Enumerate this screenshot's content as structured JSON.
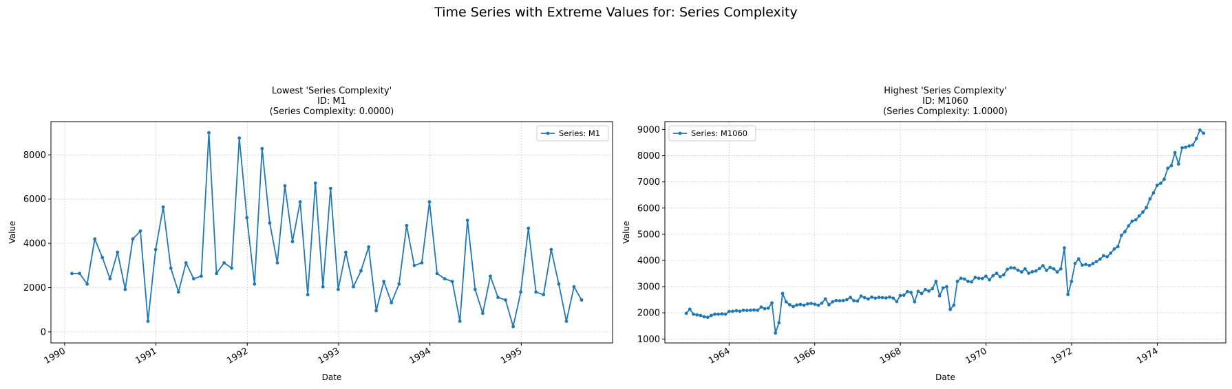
{
  "figure": {
    "suptitle": "Time Series with Extreme Values for: Series Complexity"
  },
  "style": {
    "line_color": "#1f77b4",
    "grid_color": "#cccccc",
    "axes_color": "#000000"
  },
  "chart_data": [
    {
      "type": "line",
      "title_lines": [
        "Lowest 'Series Complexity'",
        "ID: M1",
        "(Series Complexity: 0.0000)"
      ],
      "xlabel": "Date",
      "ylabel": "Value",
      "xlim": [
        1989.85,
        1996.0
      ],
      "ylim": [
        -500,
        9500
      ],
      "xticks": [
        1990,
        1991,
        1992,
        1993,
        1994,
        1995
      ],
      "xtick_labels": [
        "1990",
        "1991",
        "1992",
        "1993",
        "1994",
        "1995"
      ],
      "yticks": [
        0,
        2000,
        4000,
        6000,
        8000
      ],
      "ytick_labels": [
        "0",
        "2000",
        "4000",
        "6000",
        "8000"
      ],
      "grid": true,
      "legend_position": "upper right",
      "series": [
        {
          "name": "Series: M1",
          "start_year": 1990.08,
          "step_years": 0.0833,
          "values": [
            2640,
            2640,
            2160,
            4200,
            3360,
            2400,
            3600,
            1920,
            4200,
            4560,
            480,
            3720,
            5640,
            2880,
            1800,
            3120,
            2400,
            2520,
            9000,
            2640,
            3120,
            2880,
            8760,
            5160,
            2160,
            8280,
            4920,
            3120,
            6600,
            4080,
            5880,
            1680,
            6720,
            2040,
            6480,
            1920,
            3600,
            2040,
            2760,
            3840,
            960,
            2280,
            1320,
            2160,
            4800,
            3000,
            3120,
            5880,
            2640,
            2400,
            2280,
            480,
            5040,
            1920,
            840,
            2520,
            1560,
            1440,
            240,
            1800,
            4680,
            1800,
            1680,
            3720,
            2160,
            480,
            2040,
            1440
          ]
        }
      ]
    },
    {
      "type": "line",
      "title_lines": [
        "Highest 'Series Complexity'",
        "ID: M1060",
        "(Series Complexity: 1.0000)"
      ],
      "xlabel": "Date",
      "ylabel": "Value",
      "xlim": [
        1962.5,
        1975.6
      ],
      "ylim": [
        850,
        9300
      ],
      "xticks": [
        1964,
        1966,
        1968,
        1970,
        1972,
        1974
      ],
      "xtick_labels": [
        "1964",
        "1966",
        "1968",
        "1970",
        "1972",
        "1974"
      ],
      "yticks": [
        1000,
        2000,
        3000,
        4000,
        5000,
        6000,
        7000,
        8000,
        9000
      ],
      "ytick_labels": [
        "1000",
        "2000",
        "3000",
        "4000",
        "5000",
        "6000",
        "7000",
        "8000",
        "9000"
      ],
      "grid": true,
      "legend_position": "upper left",
      "series": [
        {
          "name": "Series: M1060",
          "start_year": 1963.0,
          "step_years": 0.0833,
          "values": [
            1980,
            2140,
            1950,
            1920,
            1900,
            1850,
            1830,
            1900,
            1950,
            1950,
            1960,
            1950,
            2050,
            2060,
            2080,
            2060,
            2100,
            2090,
            2100,
            2110,
            2100,
            2220,
            2160,
            2180,
            2380,
            1230,
            1620,
            2740,
            2420,
            2310,
            2240,
            2300,
            2320,
            2290,
            2340,
            2360,
            2330,
            2290,
            2370,
            2530,
            2310,
            2420,
            2470,
            2460,
            2470,
            2500,
            2590,
            2460,
            2450,
            2640,
            2580,
            2530,
            2600,
            2560,
            2590,
            2580,
            2570,
            2600,
            2560,
            2430,
            2660,
            2670,
            2810,
            2780,
            2420,
            2820,
            2740,
            2890,
            2830,
            2920,
            3200,
            2650,
            2950,
            3000,
            2130,
            2290,
            3200,
            3320,
            3290,
            3200,
            3180,
            3350,
            3320,
            3310,
            3400,
            3260,
            3420,
            3510,
            3380,
            3450,
            3660,
            3720,
            3710,
            3630,
            3560,
            3680,
            3510,
            3570,
            3600,
            3690,
            3800,
            3620,
            3740,
            3680,
            3560,
            3680,
            4480,
            2700,
            3200,
            3890,
            4060,
            3820,
            3850,
            3810,
            3880,
            3960,
            4050,
            4180,
            4140,
            4280,
            4440,
            4530,
            4960,
            5100,
            5320,
            5500,
            5550,
            5700,
            5850,
            6020,
            6350,
            6580,
            6870,
            6950,
            7100,
            7520,
            7620,
            8120,
            7680,
            8300,
            8320,
            8370,
            8410,
            8650,
            8980,
            8860
          ]
        }
      ]
    }
  ]
}
